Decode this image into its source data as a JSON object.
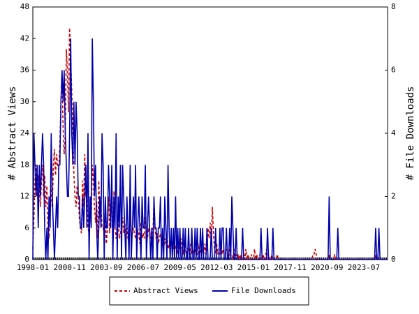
{
  "chart_data": {
    "type": "line",
    "ylabel": "# Abstract Views",
    "y2label": "# File Downloads",
    "ylim": [
      0,
      48
    ],
    "yticks": [
      0,
      6,
      12,
      18,
      24,
      30,
      36,
      42,
      48
    ],
    "y2lim": [
      0,
      8
    ],
    "y2ticks": [
      0,
      2,
      4,
      6,
      8
    ],
    "categories": [
      "1998-01",
      null,
      null,
      null,
      null,
      null,
      null,
      null,
      null,
      null,
      null,
      null,
      null,
      null,
      null,
      null,
      null,
      null,
      null,
      null,
      null,
      null,
      null,
      null,
      null,
      null,
      null,
      null,
      null,
      null,
      null,
      null,
      null,
      null,
      "2000-11",
      null,
      null,
      null,
      null,
      null,
      null,
      null,
      null,
      null,
      null,
      null,
      null,
      null,
      null,
      null,
      null,
      null,
      null,
      null,
      null,
      null,
      null,
      null,
      null,
      null,
      null,
      null,
      null,
      null,
      null,
      null,
      null,
      null,
      "2003-09",
      null,
      null,
      null,
      null,
      null,
      null,
      null,
      null,
      null,
      null,
      null,
      null,
      null,
      null,
      null,
      null,
      null,
      null,
      null,
      null,
      null,
      null,
      null,
      null,
      null,
      null,
      null,
      null,
      null,
      null,
      null,
      null,
      null,
      "2006-07",
      null,
      null,
      null,
      null,
      null,
      null,
      null,
      null,
      null,
      null,
      null,
      null,
      null,
      null,
      null,
      null,
      null,
      null,
      null,
      null,
      null,
      null,
      null,
      null,
      null,
      null,
      null,
      null,
      null,
      null,
      null,
      null,
      null,
      "2009-05",
      null,
      null,
      null,
      null,
      null,
      null,
      null,
      null,
      null,
      null,
      null,
      null,
      null,
      null,
      null,
      null,
      null,
      null,
      null,
      null,
      null,
      null,
      null,
      null,
      null,
      null,
      null,
      null,
      null,
      null,
      null,
      null,
      null,
      "2012-03",
      null,
      null,
      null,
      null,
      null,
      null,
      null,
      null,
      null,
      null,
      null,
      null,
      null,
      null,
      null,
      null,
      null,
      null,
      null,
      null,
      null,
      null,
      null,
      null,
      null,
      null,
      null,
      null,
      null,
      null,
      null,
      null,
      null,
      "2015-01",
      null,
      null,
      null,
      null,
      null,
      null,
      null,
      null,
      null,
      null,
      null,
      null,
      null,
      null,
      null,
      null,
      null,
      null,
      null,
      null,
      null,
      null,
      null,
      null,
      null,
      null,
      null,
      null,
      null,
      null,
      null,
      null,
      null,
      "2017-11",
      null,
      null,
      null,
      null,
      null,
      null,
      null,
      null,
      null,
      null,
      null,
      null,
      null,
      null,
      null,
      null,
      null,
      null,
      null,
      null,
      null,
      null,
      null,
      null,
      null,
      null,
      null,
      null,
      null,
      null,
      null,
      null,
      null,
      "2020-09",
      null,
      null,
      null,
      null,
      null,
      null,
      null,
      null,
      null,
      null,
      null,
      null,
      null,
      null,
      null,
      null,
      null,
      null,
      null,
      null,
      null,
      null,
      null,
      null,
      null,
      null,
      null,
      null,
      null,
      null,
      null,
      null,
      null,
      "2023-07",
      null,
      null,
      null,
      null,
      null,
      null,
      null,
      null,
      null,
      null,
      null,
      null,
      null,
      null,
      null,
      null,
      null,
      null,
      null,
      null,
      null,
      null
    ],
    "legend": "bottom",
    "series": [
      {
        "name": "Abstract Views",
        "color": "#cc0000",
        "dashed": true,
        "values": [
          2,
          8,
          15,
          18,
          12,
          16,
          14,
          10,
          15,
          18,
          12,
          16,
          10,
          14,
          6,
          4,
          8,
          14,
          10,
          18,
          21,
          16,
          20,
          18,
          17,
          22,
          30,
          35,
          25,
          20,
          24,
          40,
          36,
          28,
          44,
          38,
          32,
          25,
          16,
          12,
          10,
          14,
          12,
          8,
          6,
          5,
          15,
          10,
          20,
          12,
          14,
          6,
          5,
          10,
          8,
          18,
          15,
          10,
          7,
          11,
          4,
          15,
          8,
          10,
          6,
          6,
          5,
          8,
          3,
          6,
          12,
          5,
          8,
          10,
          4,
          13,
          6,
          4,
          7,
          8,
          4,
          5,
          6,
          8,
          5,
          7,
          3,
          6,
          4,
          3,
          8,
          4,
          5,
          6,
          5,
          4,
          4,
          6,
          5,
          3,
          7,
          4,
          5,
          4,
          8,
          5,
          4,
          6,
          5,
          4,
          6,
          5,
          11,
          6,
          4,
          5,
          3,
          4,
          5,
          4,
          3,
          2,
          4,
          3,
          5,
          2,
          3,
          2,
          4,
          3,
          2,
          3,
          2,
          3,
          1,
          3,
          2,
          4,
          2,
          1,
          3,
          2,
          1,
          2,
          2,
          1,
          3,
          1,
          2,
          1,
          2,
          1,
          1,
          3,
          1,
          2,
          1,
          2,
          1,
          3,
          1,
          2,
          6,
          4,
          7,
          3,
          10,
          5,
          2,
          1,
          3,
          1,
          2,
          1,
          3,
          1,
          2,
          1,
          1,
          2,
          1,
          0,
          2,
          1,
          1,
          0,
          2,
          0,
          1,
          0,
          1,
          0,
          1,
          0,
          0,
          1,
          0,
          2,
          0,
          1,
          0,
          0,
          1,
          0,
          0,
          2,
          0,
          1,
          0,
          0,
          1,
          0,
          0,
          1,
          0,
          0,
          2,
          0,
          1,
          0,
          0,
          1,
          0,
          0,
          0,
          0,
          1,
          0,
          0,
          0,
          0,
          0,
          0,
          0,
          0,
          0,
          0,
          0,
          0,
          0,
          0,
          0,
          0,
          0,
          0,
          0,
          0,
          0,
          0,
          0,
          0,
          0,
          0,
          0,
          0,
          0,
          0,
          0,
          0,
          1,
          1,
          2,
          1,
          0,
          0,
          0,
          0,
          0,
          0,
          0,
          0,
          0,
          0,
          0,
          1,
          0,
          0,
          0,
          0,
          1,
          0,
          0,
          0,
          0,
          0,
          0,
          0,
          0,
          0,
          0,
          0,
          0,
          0,
          0,
          0,
          0,
          0,
          0,
          0,
          0,
          0,
          0,
          0,
          0,
          0,
          0,
          0,
          0,
          0,
          0,
          0,
          0,
          0,
          0,
          0,
          0,
          0,
          1,
          0,
          0,
          0,
          0,
          0,
          0,
          0,
          0,
          0,
          0,
          0
        ]
      },
      {
        "name": "File Downloads",
        "color": "#0000aa",
        "dashed": false,
        "axis": "y2",
        "values": [
          0,
          4,
          3,
          2,
          3,
          1,
          3,
          2,
          3,
          4,
          3,
          1,
          0,
          1,
          0,
          2,
          1,
          4,
          2,
          1,
          0,
          1,
          2,
          1,
          3,
          3,
          5,
          6,
          5,
          6,
          4,
          3,
          2,
          2,
          4,
          7,
          4,
          3,
          5,
          3,
          5,
          4,
          2,
          2,
          1,
          1,
          2,
          1,
          2,
          3,
          1,
          4,
          0,
          2,
          1,
          7,
          5,
          2,
          3,
          1,
          0,
          1,
          2,
          1,
          4,
          3,
          0,
          2,
          1,
          1,
          3,
          2,
          1,
          3,
          0,
          2,
          1,
          4,
          0,
          2,
          1,
          3,
          0,
          3,
          2,
          1,
          0,
          2,
          1,
          0,
          3,
          0,
          1,
          2,
          1,
          3,
          0,
          1,
          2,
          1,
          0,
          2,
          1,
          1,
          3,
          0,
          1,
          2,
          1,
          0,
          1,
          0,
          2,
          1,
          1,
          0,
          1,
          1,
          2,
          0,
          1,
          0,
          2,
          1,
          0,
          3,
          1,
          0,
          1,
          0,
          1,
          0,
          2,
          0,
          1,
          0,
          1,
          0,
          0,
          1,
          0,
          1,
          0,
          0,
          1,
          0,
          0,
          1,
          0,
          0,
          1,
          0,
          1,
          0,
          0,
          1,
          0,
          1,
          0,
          0,
          0,
          1,
          0,
          0,
          0,
          1,
          0,
          0,
          0,
          1,
          0,
          0,
          0,
          1,
          0,
          1,
          1,
          0,
          0,
          1,
          0,
          0,
          1,
          0,
          2,
          1,
          0,
          0,
          1,
          0,
          0,
          0,
          0,
          0,
          1,
          0,
          0,
          0,
          0,
          0,
          0,
          0,
          0,
          0,
          0,
          0,
          0,
          0,
          0,
          0,
          0,
          1,
          0,
          0,
          0,
          0,
          0,
          1,
          0,
          0,
          0,
          0,
          1,
          0,
          0,
          0,
          0,
          0,
          0,
          0,
          0,
          0,
          0,
          0,
          0,
          0,
          0,
          0,
          0,
          0,
          0,
          0,
          0,
          0,
          0,
          0,
          0,
          0,
          0,
          0,
          0,
          0,
          0,
          0,
          0,
          0,
          0,
          0,
          0,
          0,
          0,
          0,
          0,
          0,
          0,
          0,
          0,
          0,
          0,
          0,
          0,
          0,
          0,
          0,
          2,
          0,
          0,
          0,
          0,
          0,
          0,
          0,
          1,
          0,
          0,
          0,
          0,
          0,
          0,
          0,
          0,
          0,
          0,
          0,
          0,
          0,
          0,
          0,
          0,
          0,
          0,
          0,
          0,
          0,
          0,
          0,
          0,
          0,
          0,
          0,
          0,
          0,
          0,
          0,
          0,
          0,
          0,
          1,
          0,
          0,
          1,
          0,
          0,
          0,
          0,
          0,
          0,
          0,
          0
        ]
      }
    ]
  }
}
